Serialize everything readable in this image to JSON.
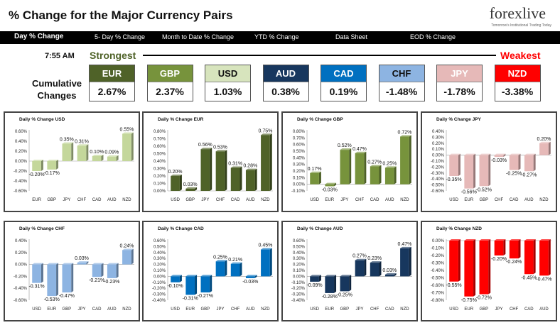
{
  "header": {
    "title": "% Change for the Major Currency Pairs",
    "logo_text": "forexlive",
    "logo_tagline": "Tomorrow's Institutional Trading Today"
  },
  "nav": [
    {
      "label": "Day % Change",
      "active": true
    },
    {
      "label": "5- Day % Change",
      "active": false
    },
    {
      "label": "Month to Date % Change",
      "active": false
    },
    {
      "label": "YTD % Change",
      "active": false
    },
    {
      "label": "Data Sheet",
      "active": false
    },
    {
      "label": "EOD % Change",
      "active": false
    }
  ],
  "summary": {
    "time": "7:55 AM",
    "strongest_label": "Strongest",
    "weakest_label": "Weakest",
    "cumulative_label_1": "Cumulative",
    "cumulative_label_2": "Changes",
    "currencies": [
      {
        "name": "EUR",
        "value": "2.67%",
        "bg": "#4f6228",
        "fg": "#ffffff"
      },
      {
        "name": "GBP",
        "value": "2.37%",
        "bg": "#77933c",
        "fg": "#ffffff"
      },
      {
        "name": "USD",
        "value": "1.03%",
        "bg": "#d7e4bd",
        "fg": "#111111"
      },
      {
        "name": "AUD",
        "value": "0.38%",
        "bg": "#17375e",
        "fg": "#ffffff"
      },
      {
        "name": "CAD",
        "value": "0.19%",
        "bg": "#0070c0",
        "fg": "#ffffff"
      },
      {
        "name": "CHF",
        "value": "-1.48%",
        "bg": "#8db4e2",
        "fg": "#111111"
      },
      {
        "name": "JPY",
        "value": "-1.78%",
        "bg": "#e6b9b8",
        "fg": "#ffffff"
      },
      {
        "name": "NZD",
        "value": "-3.38%",
        "bg": "#ff0000",
        "fg": "#ffffff"
      }
    ]
  },
  "chart_data": [
    {
      "type": "bar",
      "title": "Daily % Change USD",
      "color": "#c4d79b",
      "categories": [
        "EUR",
        "GBP",
        "JPY",
        "CHF",
        "CAD",
        "AUD",
        "NZD"
      ],
      "values": [
        -0.2,
        -0.17,
        0.35,
        0.31,
        0.1,
        0.09,
        0.55
      ],
      "labels": [
        "-0.20%",
        "-0.17%",
        "0.35%",
        "0.31%",
        "0.10%",
        "0.09%",
        "0.55%"
      ],
      "ylim": [
        -0.6,
        0.6
      ],
      "ticks": [
        "0.60%",
        "0.40%",
        "0.20%",
        "0.00%",
        "-0.20%",
        "-0.40%",
        "-0.60%"
      ]
    },
    {
      "type": "bar",
      "title": "Daily % Change EUR",
      "color": "#4f6228",
      "categories": [
        "USD",
        "GBP",
        "JPY",
        "CHF",
        "CAD",
        "AUD",
        "NZD"
      ],
      "values": [
        0.2,
        0.03,
        0.56,
        0.53,
        0.31,
        0.28,
        0.75
      ],
      "labels": [
        "0.20%",
        "0.03%",
        "0.56%",
        "0.53%",
        "0.31%",
        "0.28%",
        "0.75%"
      ],
      "ylim": [
        0.0,
        0.8
      ],
      "ticks": [
        "0.80%",
        "0.70%",
        "0.60%",
        "0.50%",
        "0.40%",
        "0.30%",
        "0.20%",
        "0.10%",
        "0.00%"
      ]
    },
    {
      "type": "bar",
      "title": "Daily % Change GBP",
      "color": "#77933c",
      "categories": [
        "USD",
        "EUR",
        "JPY",
        "CHF",
        "CAD",
        "AUD",
        "NZD"
      ],
      "values": [
        0.17,
        -0.03,
        0.52,
        0.47,
        0.27,
        0.25,
        0.72
      ],
      "labels": [
        "0.17%",
        "-0.03%",
        "0.52%",
        "0.47%",
        "0.27%",
        "0.25%",
        "0.72%"
      ],
      "ylim": [
        -0.1,
        0.8
      ],
      "ticks": [
        "0.80%",
        "0.70%",
        "0.60%",
        "0.50%",
        "0.40%",
        "0.30%",
        "0.20%",
        "0.10%",
        "0.00%",
        "-0.10%"
      ]
    },
    {
      "type": "bar",
      "title": "Daily % Change JPY",
      "color": "#e6b9b8",
      "categories": [
        "USD",
        "EUR",
        "GBP",
        "CHF",
        "CAD",
        "AUD",
        "NZD"
      ],
      "values": [
        -0.35,
        -0.56,
        -0.52,
        -0.03,
        -0.25,
        -0.27,
        0.2
      ],
      "labels": [
        "-0.35%",
        "-0.56%",
        "-0.52%",
        "-0.03%",
        "-0.25%",
        "-0.27%",
        "0.20%"
      ],
      "ylim": [
        -0.6,
        0.4
      ],
      "ticks": [
        "0.40%",
        "0.30%",
        "0.20%",
        "0.10%",
        "0.00%",
        "-0.10%",
        "-0.20%",
        "-0.30%",
        "-0.40%",
        "-0.50%",
        "-0.60%"
      ]
    },
    {
      "type": "bar",
      "title": "Daily % Change CHF",
      "color": "#8db4e2",
      "categories": [
        "USD",
        "EUR",
        "GBP",
        "JPY",
        "CAD",
        "AUD",
        "NZD"
      ],
      "values": [
        -0.31,
        -0.53,
        -0.47,
        0.03,
        -0.21,
        -0.23,
        0.24
      ],
      "labels": [
        "-0.31%",
        "-0.53%",
        "-0.47%",
        "0.03%",
        "-0.21%",
        "-0.23%",
        "0.24%"
      ],
      "ylim": [
        -0.6,
        0.4
      ],
      "ticks": [
        "0.40%",
        "0.20%",
        "0.00%",
        "-0.20%",
        "-0.40%",
        "-0.60%"
      ]
    },
    {
      "type": "bar",
      "title": "Daily % Change CAD",
      "color": "#0070c0",
      "categories": [
        "USD",
        "EUR",
        "GBP",
        "JPY",
        "CHF",
        "AUD",
        "NZD"
      ],
      "values": [
        -0.1,
        -0.31,
        -0.27,
        0.25,
        0.21,
        -0.03,
        0.45
      ],
      "labels": [
        "-0.10%",
        "-0.31%",
        "-0.27%",
        "0.25%",
        "0.21%",
        "-0.03%",
        "0.45%"
      ],
      "ylim": [
        -0.4,
        0.6
      ],
      "ticks": [
        "0.60%",
        "0.50%",
        "0.40%",
        "0.30%",
        "0.20%",
        "0.10%",
        "0.00%",
        "-0.10%",
        "-0.20%",
        "-0.30%",
        "-0.40%"
      ]
    },
    {
      "type": "bar",
      "title": "Daily % Change AUD",
      "color": "#17375e",
      "categories": [
        "USD",
        "EUR",
        "GBP",
        "JPY",
        "CHF",
        "CAD",
        "NZD"
      ],
      "values": [
        -0.09,
        -0.28,
        -0.25,
        0.27,
        0.23,
        0.03,
        0.47
      ],
      "labels": [
        "-0.09%",
        "-0.28%",
        "-0.25%",
        "0.27%",
        "0.23%",
        "0.03%",
        "0.47%"
      ],
      "ylim": [
        -0.4,
        0.6
      ],
      "ticks": [
        "0.60%",
        "0.50%",
        "0.40%",
        "0.30%",
        "0.20%",
        "0.10%",
        "0.00%",
        "-0.10%",
        "-0.20%",
        "-0.30%",
        "-0.40%"
      ]
    },
    {
      "type": "bar",
      "title": "Daily % Change NZD",
      "color": "#ff0000",
      "categories": [
        "USD",
        "EUR",
        "GBP",
        "JPY",
        "CHF",
        "CAD",
        "AUD"
      ],
      "values": [
        -0.55,
        -0.75,
        -0.72,
        -0.2,
        -0.24,
        -0.45,
        -0.47
      ],
      "labels": [
        "-0.55%",
        "-0.75%",
        "-0.72%",
        "-0.20%",
        "-0.24%",
        "-0.45%",
        "-0.47%"
      ],
      "ylim": [
        -0.8,
        0.0
      ],
      "ticks": [
        "0.00%",
        "-0.10%",
        "-0.20%",
        "-0.30%",
        "-0.40%",
        "-0.50%",
        "-0.60%",
        "-0.70%",
        "-0.80%"
      ]
    }
  ]
}
